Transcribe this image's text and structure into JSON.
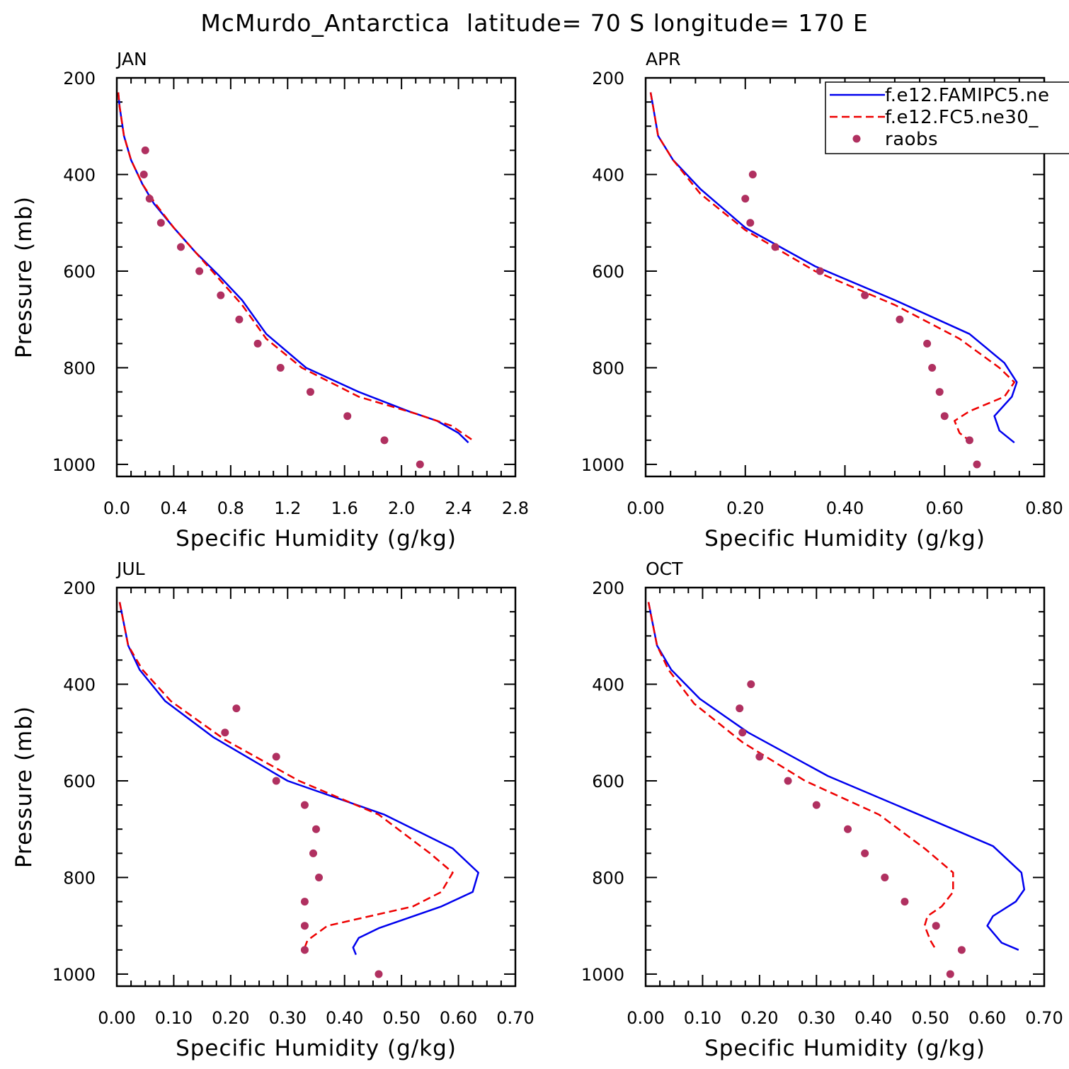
{
  "figure": {
    "title": "McMurdo_Antarctica  latitude= 70 S longitude= 170 E"
  },
  "legend": {
    "placement": "top-right of APR panel",
    "items": [
      {
        "label": "f.e12.FAMIPC5.ne",
        "style": "solid",
        "color": "#0000ee"
      },
      {
        "label": "f.e12.FC5.ne30_",
        "style": "dashed",
        "color": "#ee0000"
      },
      {
        "label": "raobs",
        "style": "marker",
        "color": "#b03060"
      }
    ]
  },
  "colors": {
    "famip": "#0000ee",
    "fc5": "#ee0000",
    "raobs": "#b03060"
  },
  "chart_data": [
    {
      "type": "line",
      "title": "JAN",
      "xlabel": "Specific Humidity (g/kg)",
      "ylabel": "Pressure (mb)",
      "xlim": [
        0,
        2.8
      ],
      "ylim": [
        1025,
        200
      ],
      "y_inverted": true,
      "xticks": [
        "0.0",
        "0.4",
        "0.8",
        "1.2",
        "1.6",
        "2.0",
        "2.4",
        "2.8"
      ],
      "xtick_values": [
        0,
        0.4,
        0.8,
        1.2,
        1.6,
        2.0,
        2.4,
        2.8
      ],
      "yticks": [
        "200",
        "400",
        "600",
        "800",
        "1000"
      ],
      "ytick_values": [
        200,
        400,
        600,
        800,
        1000
      ],
      "series": [
        {
          "name": "f.e12.FAMIPC5.ne",
          "style": "solid",
          "color": "#0000ee",
          "x": [
            0.01,
            0.02,
            0.05,
            0.1,
            0.18,
            0.26,
            0.4,
            0.55,
            0.72,
            0.88,
            1.05,
            1.33,
            1.7,
            2.05,
            2.25,
            2.4,
            2.47
          ],
          "y": [
            230,
            260,
            320,
            370,
            420,
            460,
            510,
            560,
            610,
            660,
            730,
            800,
            850,
            890,
            910,
            935,
            955
          ]
        },
        {
          "name": "f.e12.FC5.ne30_",
          "style": "dashed",
          "color": "#ee0000",
          "x": [
            0.01,
            0.02,
            0.05,
            0.1,
            0.18,
            0.27,
            0.4,
            0.55,
            0.7,
            0.88,
            1.05,
            1.3,
            1.7,
            2.1,
            2.35,
            2.5
          ],
          "y": [
            230,
            260,
            320,
            370,
            420,
            460,
            510,
            560,
            610,
            670,
            740,
            800,
            860,
            895,
            920,
            950
          ]
        },
        {
          "name": "raobs",
          "style": "marker",
          "color": "#b03060",
          "x": [
            0.2,
            0.19,
            0.23,
            0.31,
            0.45,
            0.58,
            0.73,
            0.86,
            0.99,
            1.15,
            1.36,
            1.62,
            1.88,
            2.13
          ],
          "y": [
            350,
            400,
            450,
            500,
            550,
            600,
            650,
            700,
            750,
            800,
            850,
            900,
            950,
            1000
          ]
        }
      ]
    },
    {
      "type": "line",
      "title": "APR",
      "xlabel": "Specific Humidity (g/kg)",
      "ylabel": "",
      "xlim": [
        0,
        0.8
      ],
      "ylim": [
        1025,
        200
      ],
      "y_inverted": true,
      "xticks": [
        "0.00",
        "0.20",
        "0.40",
        "0.60",
        "0.80"
      ],
      "xtick_values": [
        0,
        0.2,
        0.4,
        0.6,
        0.8
      ],
      "yticks": [
        "200",
        "400",
        "600",
        "800",
        "1000"
      ],
      "ytick_values": [
        200,
        400,
        600,
        800,
        1000
      ],
      "series": [
        {
          "name": "f.e12.FAMIPC5.ne",
          "style": "solid",
          "color": "#0000ee",
          "x": [
            0.01,
            0.015,
            0.025,
            0.055,
            0.11,
            0.2,
            0.34,
            0.5,
            0.65,
            0.72,
            0.745,
            0.735,
            0.7,
            0.71,
            0.74
          ],
          "y": [
            230,
            260,
            320,
            370,
            430,
            510,
            590,
            660,
            730,
            790,
            830,
            860,
            900,
            930,
            955
          ]
        },
        {
          "name": "f.e12.FC5.ne30_",
          "style": "dashed",
          "color": "#ee0000",
          "x": [
            0.01,
            0.015,
            0.025,
            0.055,
            0.11,
            0.2,
            0.34,
            0.5,
            0.63,
            0.71,
            0.74,
            0.72,
            0.65,
            0.62,
            0.63,
            0.655
          ],
          "y": [
            230,
            260,
            320,
            370,
            440,
            515,
            600,
            670,
            740,
            800,
            830,
            860,
            890,
            910,
            935,
            955
          ]
        },
        {
          "name": "raobs",
          "style": "marker",
          "color": "#b03060",
          "x": [
            0.215,
            0.2,
            0.21,
            0.26,
            0.35,
            0.44,
            0.51,
            0.565,
            0.575,
            0.59,
            0.6,
            0.65,
            0.665
          ],
          "y": [
            400,
            450,
            500,
            550,
            600,
            650,
            700,
            750,
            800,
            850,
            900,
            950,
            1000
          ]
        }
      ]
    },
    {
      "type": "line",
      "title": "JUL",
      "xlabel": "Specific Humidity (g/kg)",
      "ylabel": "Pressure (mb)",
      "xlim": [
        0,
        0.7
      ],
      "ylim": [
        1025,
        200
      ],
      "y_inverted": true,
      "xticks": [
        "0.00",
        "0.10",
        "0.20",
        "0.30",
        "0.40",
        "0.50",
        "0.60",
        "0.70"
      ],
      "xtick_values": [
        0,
        0.1,
        0.2,
        0.3,
        0.4,
        0.5,
        0.6,
        0.7
      ],
      "yticks": [
        "200",
        "400",
        "600",
        "800",
        "1000"
      ],
      "ytick_values": [
        200,
        400,
        600,
        800,
        1000
      ],
      "series": [
        {
          "name": "f.e12.FAMIPC5.ne",
          "style": "solid",
          "color": "#0000ee",
          "x": [
            0.005,
            0.01,
            0.02,
            0.04,
            0.085,
            0.17,
            0.3,
            0.47,
            0.59,
            0.635,
            0.625,
            0.57,
            0.46,
            0.425,
            0.415,
            0.42
          ],
          "y": [
            230,
            260,
            320,
            370,
            435,
            510,
            600,
            670,
            740,
            790,
            830,
            860,
            905,
            925,
            945,
            960
          ]
        },
        {
          "name": "f.e12.FC5.ne30_",
          "style": "dashed",
          "color": "#ee0000",
          "x": [
            0.005,
            0.01,
            0.02,
            0.045,
            0.095,
            0.19,
            0.32,
            0.46,
            0.55,
            0.59,
            0.57,
            0.52,
            0.37,
            0.335,
            0.33,
            0.335
          ],
          "y": [
            230,
            260,
            320,
            370,
            435,
            515,
            600,
            670,
            750,
            790,
            830,
            860,
            900,
            930,
            945,
            955
          ]
        },
        {
          "name": "raobs",
          "style": "marker",
          "color": "#b03060",
          "x": [
            0.21,
            0.19,
            0.28,
            0.28,
            0.33,
            0.35,
            0.345,
            0.355,
            0.33,
            0.33,
            0.33,
            0.46
          ],
          "y": [
            450,
            500,
            550,
            600,
            650,
            700,
            750,
            800,
            850,
            900,
            950,
            1000
          ]
        }
      ]
    },
    {
      "type": "line",
      "title": "OCT",
      "xlabel": "Specific Humidity (g/kg)",
      "ylabel": "",
      "xlim": [
        0,
        0.7
      ],
      "ylim": [
        1025,
        200
      ],
      "y_inverted": true,
      "xticks": [
        "0.00",
        "0.10",
        "0.20",
        "0.30",
        "0.40",
        "0.50",
        "0.60",
        "0.70"
      ],
      "xtick_values": [
        0,
        0.1,
        0.2,
        0.3,
        0.4,
        0.5,
        0.6,
        0.7
      ],
      "yticks": [
        "200",
        "400",
        "600",
        "800",
        "1000"
      ],
      "ytick_values": [
        200,
        400,
        600,
        800,
        1000
      ],
      "series": [
        {
          "name": "f.e12.FAMIPC5.ne",
          "style": "solid",
          "color": "#0000ee",
          "x": [
            0.005,
            0.01,
            0.02,
            0.045,
            0.095,
            0.18,
            0.32,
            0.48,
            0.61,
            0.66,
            0.665,
            0.65,
            0.61,
            0.6,
            0.625,
            0.655
          ],
          "y": [
            230,
            260,
            320,
            370,
            430,
            500,
            590,
            670,
            735,
            790,
            825,
            850,
            880,
            900,
            935,
            950
          ]
        },
        {
          "name": "f.e12.FC5.ne30_",
          "style": "dashed",
          "color": "#ee0000",
          "x": [
            0.005,
            0.01,
            0.02,
            0.04,
            0.085,
            0.17,
            0.28,
            0.41,
            0.49,
            0.54,
            0.54,
            0.52,
            0.495,
            0.49,
            0.5,
            0.51
          ],
          "y": [
            230,
            260,
            320,
            370,
            440,
            520,
            600,
            670,
            740,
            790,
            830,
            860,
            880,
            900,
            930,
            950
          ]
        },
        {
          "name": "raobs",
          "style": "marker",
          "color": "#b03060",
          "x": [
            0.185,
            0.165,
            0.17,
            0.2,
            0.25,
            0.3,
            0.355,
            0.385,
            0.42,
            0.455,
            0.51,
            0.555,
            0.535
          ],
          "y": [
            400,
            450,
            500,
            550,
            600,
            650,
            700,
            750,
            800,
            850,
            900,
            950,
            1000
          ]
        }
      ]
    }
  ]
}
